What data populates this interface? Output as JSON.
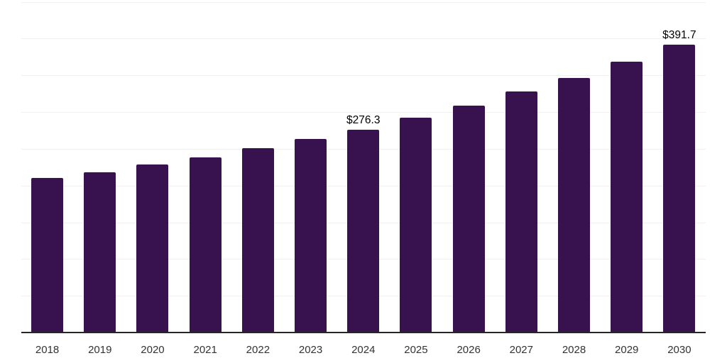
{
  "chart_data": {
    "type": "bar",
    "title": "",
    "xlabel": "",
    "ylabel": "",
    "categories": [
      "2018",
      "2019",
      "2020",
      "2021",
      "2022",
      "2023",
      "2024",
      "2025",
      "2026",
      "2027",
      "2028",
      "2029",
      "2030"
    ],
    "values": [
      210.6,
      218.0,
      228.3,
      238.6,
      250.5,
      263.6,
      276.3,
      292.0,
      309.0,
      327.7,
      346.3,
      368.2,
      391.7
    ],
    "annotations": [
      {
        "category": "2024",
        "text": "$276.3"
      },
      {
        "category": "2030",
        "text": "$391.7"
      }
    ],
    "ylim": [
      0,
      450
    ],
    "gridline_interval": 50,
    "grid": true,
    "legend": false,
    "y_axis_tick_labels_visible": false,
    "colors": {
      "bar": "#38124f",
      "gridline": "#f0f0f0",
      "axis_line": "#262626",
      "tick_label": "#333333",
      "value_label": "#000000",
      "background": "#ffffff"
    }
  }
}
